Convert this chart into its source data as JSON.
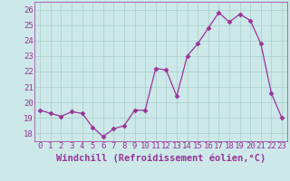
{
  "x": [
    0,
    1,
    2,
    3,
    4,
    5,
    6,
    7,
    8,
    9,
    10,
    11,
    12,
    13,
    14,
    15,
    16,
    17,
    18,
    19,
    20,
    21,
    22,
    23
  ],
  "y": [
    19.5,
    19.3,
    19.1,
    19.4,
    19.3,
    18.4,
    17.8,
    18.3,
    18.5,
    19.5,
    19.5,
    22.2,
    22.1,
    20.4,
    23.0,
    23.8,
    24.8,
    25.8,
    25.2,
    25.7,
    25.3,
    23.8,
    20.6,
    19.0
  ],
  "line_color": "#993399",
  "marker": "D",
  "marker_size": 2.5,
  "bg_color": "#cce8e8",
  "grid_color": "#aacccc",
  "xlabel": "Windchill (Refroidissement éolien,°C)",
  "xlabel_fontsize": 7.5,
  "tick_fontsize": 6.5,
  "ylim": [
    17.5,
    26.5
  ],
  "yticks": [
    18,
    19,
    20,
    21,
    22,
    23,
    24,
    25,
    26
  ],
  "xtick_labels": [
    "0",
    "1",
    "2",
    "3",
    "4",
    "5",
    "6",
    "7",
    "8",
    "9",
    "10",
    "11",
    "12",
    "13",
    "14",
    "15",
    "16",
    "17",
    "18",
    "19",
    "20",
    "21",
    "22",
    "23"
  ]
}
